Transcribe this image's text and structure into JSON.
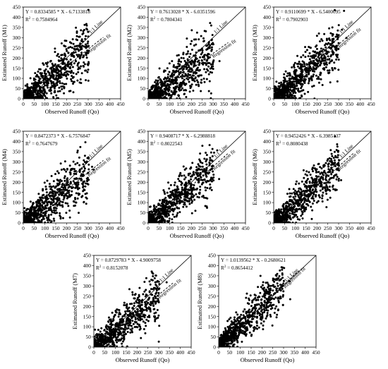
{
  "figure": {
    "xlabel": "Observed Runoff (Qo)",
    "reference_label": "1:1 Line",
    "fit_label": "Regression fit"
  },
  "chart_data": [
    {
      "type": "scatter",
      "model": "M1",
      "ylabel": "Estimated Runoff (M1)",
      "equation": "Y = 0.8334585 * X - 6.7133818",
      "r2_prefix": "R",
      "r2_sup": "2",
      "r2_value": " = 0.7584964",
      "slope": 0.8334585,
      "intercept": -6.7133818,
      "r2": 0.7584964,
      "xlim": [
        0,
        450
      ],
      "ylim": [
        0,
        450
      ],
      "xticks": [
        "0",
        "50",
        "100",
        "150",
        "200",
        "250",
        "300",
        "350",
        "400",
        "450"
      ],
      "yticks": [
        "0",
        "50",
        "100",
        "150",
        "200",
        "250",
        "300",
        "350",
        "400",
        "450"
      ]
    },
    {
      "type": "scatter",
      "model": "M2",
      "ylabel": "Estimated Runoff (M2)",
      "equation": "Y = 0.7613028 * X - 6.0351596",
      "r2_prefix": "R",
      "r2_sup": "2",
      "r2_value": " = 0.7804341",
      "slope": 0.7613028,
      "intercept": -6.0351596,
      "r2": 0.7804341,
      "xlim": [
        0,
        450
      ],
      "ylim": [
        0,
        450
      ],
      "xticks": [
        "0",
        "50",
        "100",
        "150",
        "200",
        "250",
        "300",
        "350",
        "400",
        "450"
      ],
      "yticks": [
        "0",
        "50",
        "100",
        "150",
        "200",
        "250",
        "300",
        "350",
        "400",
        "450"
      ]
    },
    {
      "type": "scatter",
      "model": "M3",
      "ylabel": "Estimated Runoff (M3)",
      "equation": "Y = 0.9110699 * X - 6.5400095",
      "r2_prefix": "R",
      "r2_sup": "2",
      "r2_value": " = 0.7902903",
      "slope": 0.9110699,
      "intercept": -6.5400095,
      "r2": 0.7902903,
      "xlim": [
        0,
        450
      ],
      "ylim": [
        0,
        450
      ],
      "xticks": [
        "0",
        "50",
        "100",
        "150",
        "200",
        "250",
        "300",
        "350",
        "400",
        "450"
      ],
      "yticks": [
        "0",
        "50",
        "100",
        "150",
        "200",
        "250",
        "300",
        "350",
        "400",
        "450"
      ]
    },
    {
      "type": "scatter",
      "model": "M4",
      "ylabel": "Estimated Runoff (M4)",
      "equation": "Y = 0.8472373 * X - 6.7576847",
      "r2_prefix": "R",
      "r2_sup": "2",
      "r2_value": " = 0.7647679",
      "slope": 0.8472373,
      "intercept": -6.7576847,
      "r2": 0.7647679,
      "xlim": [
        0,
        450
      ],
      "ylim": [
        0,
        450
      ],
      "xticks": [
        "0",
        "50",
        "100",
        "150",
        "200",
        "250",
        "300",
        "350",
        "400",
        "450"
      ],
      "yticks": [
        "0",
        "50",
        "100",
        "150",
        "200",
        "250",
        "300",
        "350",
        "400",
        "450"
      ]
    },
    {
      "type": "scatter",
      "model": "M5",
      "ylabel": "Estimated Runoff (M5)",
      "equation": "Y = 0.9408717 * X - 6.2988818",
      "r2_prefix": "R",
      "r2_sup": "2",
      "r2_value": " = 0.8022543",
      "slope": 0.9408717,
      "intercept": -6.2988818,
      "r2": 0.8022543,
      "xlim": [
        0,
        450
      ],
      "ylim": [
        0,
        450
      ],
      "xticks": [
        "0",
        "50",
        "100",
        "150",
        "200",
        "250",
        "300",
        "350",
        "400",
        "450"
      ],
      "yticks": [
        "0",
        "50",
        "100",
        "150",
        "200",
        "250",
        "300",
        "350",
        "400",
        "450"
      ]
    },
    {
      "type": "scatter",
      "model": "M6",
      "ylabel": "Estimated Runoff (M6)",
      "equation": "Y = 0.9452426 * X - 6.3985137",
      "r2_prefix": "R",
      "r2_sup": "2",
      "r2_value": " = 0.8080438",
      "slope": 0.9452426,
      "intercept": -6.3985137,
      "r2": 0.8080438,
      "xlim": [
        0,
        450
      ],
      "ylim": [
        0,
        450
      ],
      "xticks": [
        "0",
        "50",
        "100",
        "150",
        "200",
        "250",
        "300",
        "350",
        "400",
        "450"
      ],
      "yticks": [
        "0",
        "50",
        "100",
        "150",
        "200",
        "250",
        "300",
        "350",
        "400",
        "450"
      ]
    },
    {
      "type": "scatter",
      "model": "M7",
      "ylabel": "Estimated Runoff (M7)",
      "equation": "Y = 0.8729783 * X - 4.9009758",
      "r2_prefix": "R",
      "r2_sup": "2",
      "r2_value": " = 0.8152078",
      "slope": 0.8729783,
      "intercept": -4.9009758,
      "r2": 0.8152078,
      "xlim": [
        0,
        450
      ],
      "ylim": [
        0,
        450
      ],
      "xticks": [
        "0",
        "50",
        "100",
        "150",
        "200",
        "250",
        "300",
        "350",
        "400",
        "450"
      ],
      "yticks": [
        "0",
        "50",
        "100",
        "150",
        "200",
        "250",
        "300",
        "350",
        "400",
        "450"
      ]
    },
    {
      "type": "scatter",
      "model": "M8",
      "ylabel": "Estimated Runoff (M8)",
      "equation": "Y = 1.0139562 * X - 0.2680621",
      "r2_prefix": "R",
      "r2_sup": "2",
      "r2_value": " = 0.8654412",
      "slope": 1.0139562,
      "intercept": -0.2680621,
      "r2": 0.8654412,
      "xlim": [
        0,
        450
      ],
      "ylim": [
        0,
        450
      ],
      "xticks": [
        "0",
        "50",
        "100",
        "150",
        "200",
        "250",
        "300",
        "350",
        "400",
        "450"
      ],
      "yticks": [
        "0",
        "50",
        "100",
        "150",
        "200",
        "250",
        "300",
        "350",
        "400",
        "450"
      ]
    }
  ]
}
